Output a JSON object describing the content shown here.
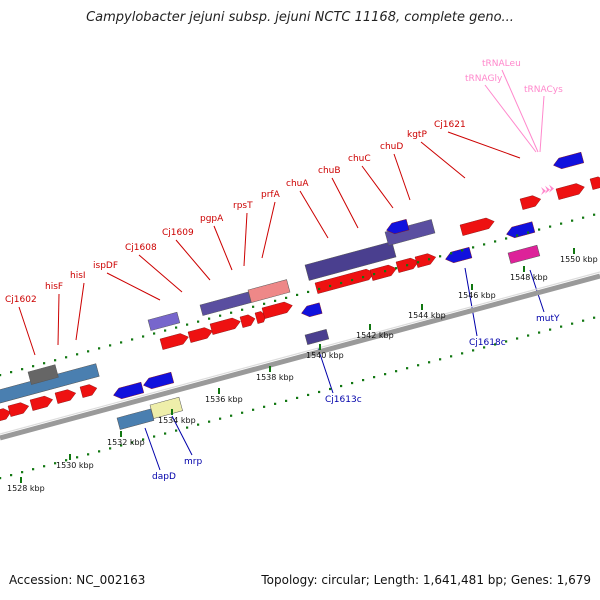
{
  "title": "Campylobacter jejuni subsp. jejuni NCTC 11168, complete geno...",
  "footer": {
    "accession": "Accession: NC_002163",
    "topology": "Topology: circular; Length: 1,641,481 bp; Genes: 1,679"
  },
  "colors": {
    "forward_cds": "#ee1111",
    "reverse_cds": "#1111dd",
    "forward_label": "#cc0000",
    "reverse_label": "#0000aa",
    "trna": "#ff88cc",
    "backbone": "#9a9a9a",
    "ticks": "#117711"
  },
  "axis_ticks": [
    "1528 kbp",
    "1530 kbp",
    "1532 kbp",
    "1534 kbp",
    "1536 kbp",
    "1538 kbp",
    "1540 kbp",
    "1542 kbp",
    "1544 kbp",
    "1546 kbp",
    "1548 kbp",
    "1550 kbp"
  ],
  "forward_labels": [
    "Cj1602",
    "hisF",
    "hisI",
    "ispDF",
    "Cj1608",
    "Cj1609",
    "pgpA",
    "rpsT",
    "prfA",
    "chuA",
    "chuB",
    "chuC",
    "chuD",
    "kgtP",
    "Cj1621"
  ],
  "trna_labels": [
    "tRNALeu",
    "tRNAGly",
    "tRNACys"
  ],
  "reverse_labels": [
    "dapD",
    "mrp",
    "Cj1613c",
    "Cj1618c",
    "mutY"
  ]
}
